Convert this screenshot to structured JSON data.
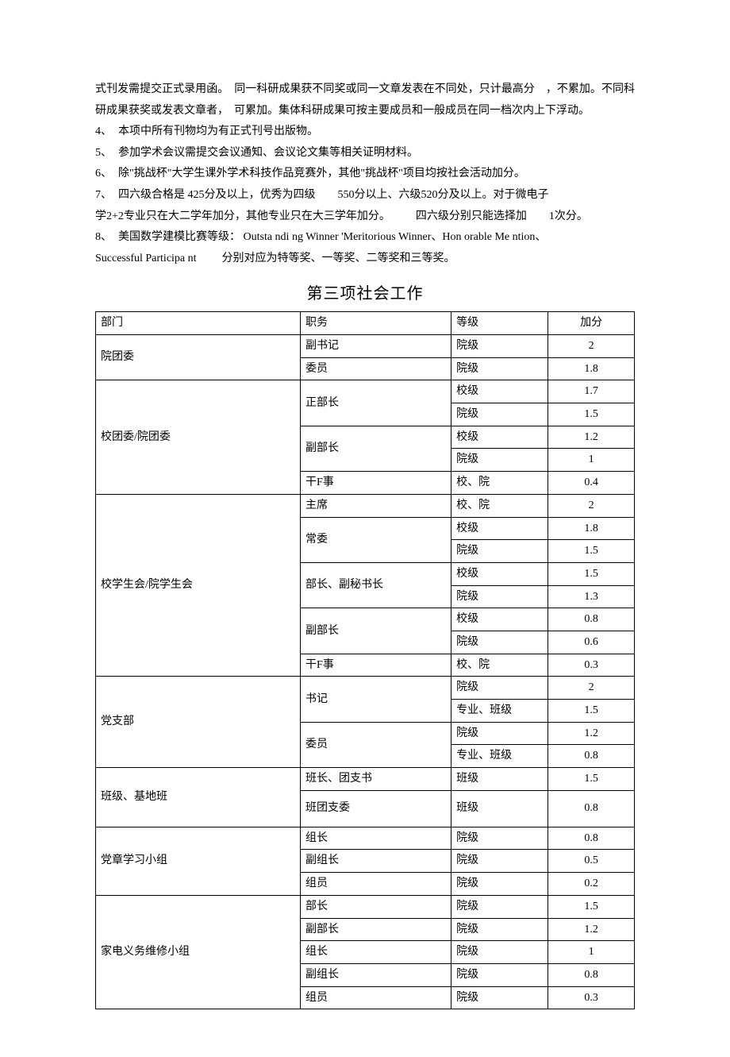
{
  "para_lead": "式刊发需提交正式录用函。　同一科研成果获不同奖或同一文章发表在不同处，只计最高分　，不累加。不同科研成果获奖或发表文章者，　可累加。集体科研成果可按主要成员和一般成员在同一档次内上下浮动。",
  "items": [
    {
      "n": "4、",
      "t": "本项中所有刊物均为有正式刊号出版物。"
    },
    {
      "n": "5、",
      "t": "参加学术会议需提交会议通知、会议论文集等相关证明材料。"
    },
    {
      "n": "6、",
      "t": "除\"挑战杯\"大学生课外学术科技作品竞赛外，其他\"挑战杯\"项目均按社会活动加分。"
    }
  ],
  "item7": {
    "n": "7、",
    "l1_a": "四六级合格是 425分及以上，优秀为四级",
    "l1_b": "550分以上、六级520分及以上。对于微电子",
    "l2_a": "学2+2专业只在大二学年加分，其他专业只在大三学年加分。",
    "l2_b": "四六级分别只能选择加",
    "l2_c": "1次分。"
  },
  "item8": {
    "n": "8、",
    "l1": "美国数学建模比赛等级： Outsta ndi ng Winner 'Meritorious Winner、Hon orable Me ntion、",
    "l2_a": "Successful Participa nt",
    "l2_b": "分别对应为特等奖、一等奖、二等奖和三等奖。"
  },
  "heading": "第三项社会工作",
  "table": {
    "headers": [
      "部门",
      "职务",
      "等级",
      "加分"
    ],
    "groups": [
      {
        "dept": "院团委",
        "subs": [
          {
            "pos": "副书记",
            "levels": [
              [
                "院级",
                "2"
              ]
            ]
          },
          {
            "pos": "委员",
            "levels": [
              [
                "院级",
                "1.8"
              ]
            ]
          }
        ]
      },
      {
        "dept": "校团委/院团委",
        "subs": [
          {
            "pos": "正部长",
            "levels": [
              [
                "校级",
                "1.7"
              ],
              [
                "院级",
                "1.5"
              ]
            ]
          },
          {
            "pos": "副部长",
            "levels": [
              [
                "校级",
                "1.2"
              ],
              [
                "院级",
                "1"
              ]
            ]
          },
          {
            "pos": "干F事",
            "levels": [
              [
                "校、院",
                "0.4"
              ]
            ]
          }
        ]
      },
      {
        "dept": "校学生会/院学生会",
        "subs": [
          {
            "pos": "主席",
            "levels": [
              [
                "校、院",
                "2"
              ]
            ]
          },
          {
            "pos": "常委",
            "levels": [
              [
                "校级",
                "1.8"
              ],
              [
                "院级",
                "1.5"
              ]
            ]
          },
          {
            "pos": "部长、副秘书长",
            "levels": [
              [
                "校级",
                "1.5"
              ],
              [
                "院级",
                "1.3"
              ]
            ]
          },
          {
            "pos": "副部长",
            "levels": [
              [
                "校级",
                "0.8"
              ],
              [
                "院级",
                "0.6"
              ]
            ]
          },
          {
            "pos": "干F事",
            "levels": [
              [
                "校、院",
                "0.3"
              ]
            ]
          }
        ]
      },
      {
        "dept": "党支部",
        "subs": [
          {
            "pos": "书记",
            "levels": [
              [
                "院级",
                "2"
              ],
              [
                "专业、班级",
                "1.5"
              ]
            ]
          },
          {
            "pos": "委员",
            "levels": [
              [
                "院级",
                "1.2"
              ],
              [
                "专业、班级",
                "0.8"
              ]
            ]
          }
        ]
      },
      {
        "dept": "班级、基地班",
        "subs": [
          {
            "pos": "班长、团支书",
            "levels": [
              [
                "班级",
                "1.5"
              ]
            ]
          },
          {
            "pos": "班团支委",
            "tall": true,
            "levels": [
              [
                "班级",
                "0.8"
              ]
            ]
          }
        ]
      },
      {
        "dept": "党章学习小组",
        "subs": [
          {
            "pos": "组长",
            "levels": [
              [
                "院级",
                "0.8"
              ]
            ]
          },
          {
            "pos": "副组长",
            "levels": [
              [
                "院级",
                "0.5"
              ]
            ]
          },
          {
            "pos": "组员",
            "levels": [
              [
                "院级",
                "0.2"
              ]
            ]
          }
        ]
      },
      {
        "dept": "家电义务维修小组",
        "subs": [
          {
            "pos": "部长",
            "levels": [
              [
                "院级",
                "1.5"
              ]
            ]
          },
          {
            "pos": "副部长",
            "levels": [
              [
                "院级",
                "1.2"
              ]
            ]
          },
          {
            "pos": "组长",
            "levels": [
              [
                "院级",
                "1"
              ]
            ]
          },
          {
            "pos": "副组长",
            "levels": [
              [
                "院级",
                "0.8"
              ]
            ]
          },
          {
            "pos": "组员",
            "levels": [
              [
                "院级",
                "0.3"
              ]
            ]
          }
        ]
      }
    ]
  }
}
